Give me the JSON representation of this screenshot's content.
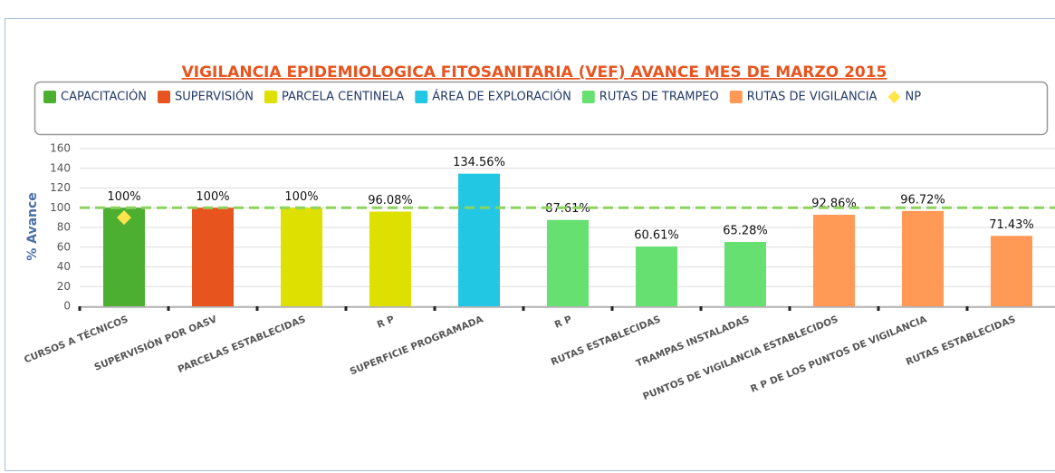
{
  "chart_data": {
    "type": "bar",
    "title": "VIGILANCIA EPIDEMIOLOGICA FITOSANITARIA (VEF) AVANCE MES DE MARZO 2015",
    "y_label": "% Avance",
    "categories": [
      "CURSOS A TÉCNICOS",
      "SUPERVISIÓN POR OASV",
      "PARCELAS ESTABLECIDAS",
      "R P",
      "SUPERFICIE PROGRAMADA",
      "R P",
      "RUTAS ESTABLECIDAS",
      "TRAMPAS INSTALADAS",
      "PUNTOS DE VIGILANCIA ESTABLECIDOS",
      "R P DE LOS PUNTOS DE VIGILANCIA",
      "RUTAS ESTABLECIDAS"
    ],
    "series": [
      {
        "name": "CAPACITACIÓN",
        "color": "#4caf32",
        "values": [
          100,
          null,
          null,
          null,
          null,
          null,
          null,
          null,
          null,
          null,
          null
        ],
        "value_labels": [
          "100%",
          null,
          null,
          null,
          null,
          null,
          null,
          null,
          null,
          null,
          null
        ]
      },
      {
        "name": "SUPERVISIÓN",
        "color": "#e8541e",
        "values": [
          null,
          100,
          null,
          null,
          null,
          null,
          null,
          null,
          null,
          null,
          null
        ],
        "value_labels": [
          null,
          "100%",
          null,
          null,
          null,
          null,
          null,
          null,
          null,
          null,
          null
        ]
      },
      {
        "name": "PARCELA CENTINELA",
        "color": "#dde000",
        "values": [
          null,
          null,
          100,
          96.08,
          null,
          null,
          null,
          null,
          null,
          null,
          null
        ],
        "value_labels": [
          null,
          null,
          "100%",
          "96.08%",
          null,
          null,
          null,
          null,
          null,
          null,
          null
        ]
      },
      {
        "name": "ÁREA DE EXPLORACIÓN",
        "color": "#22c8e3",
        "values": [
          null,
          null,
          null,
          null,
          134.56,
          null,
          null,
          null,
          null,
          null,
          null
        ],
        "value_labels": [
          null,
          null,
          null,
          null,
          "134.56%",
          null,
          null,
          null,
          null,
          null,
          null
        ]
      },
      {
        "name": "RUTAS DE TRAMPEO",
        "color": "#66e070",
        "values": [
          null,
          null,
          null,
          null,
          null,
          87.61,
          60.61,
          65.28,
          null,
          null,
          null
        ],
        "value_labels": [
          null,
          null,
          null,
          null,
          null,
          "87.61%",
          "60.61%",
          "65.28%",
          null,
          null,
          null
        ]
      },
      {
        "name": "RUTAS DE VIGILANCIA",
        "color": "#ff9955",
        "values": [
          null,
          null,
          null,
          null,
          null,
          null,
          null,
          null,
          92.86,
          96.72,
          71.43
        ],
        "value_labels": [
          null,
          null,
          null,
          null,
          null,
          null,
          null,
          null,
          "92.86%",
          "96.72%",
          "71.43%"
        ]
      },
      {
        "name": "NP",
        "type": "scatter",
        "color": "#ffe44d",
        "values": [
          90,
          null,
          null,
          null,
          null,
          null,
          null,
          null,
          null,
          null,
          null
        ]
      }
    ],
    "target_line": {
      "value": 100,
      "color": "#8dd35f"
    },
    "ylim": [
      0,
      160
    ],
    "yticks": [
      0,
      20,
      40,
      60,
      80,
      100,
      120,
      140,
      160
    ],
    "grid": true
  }
}
